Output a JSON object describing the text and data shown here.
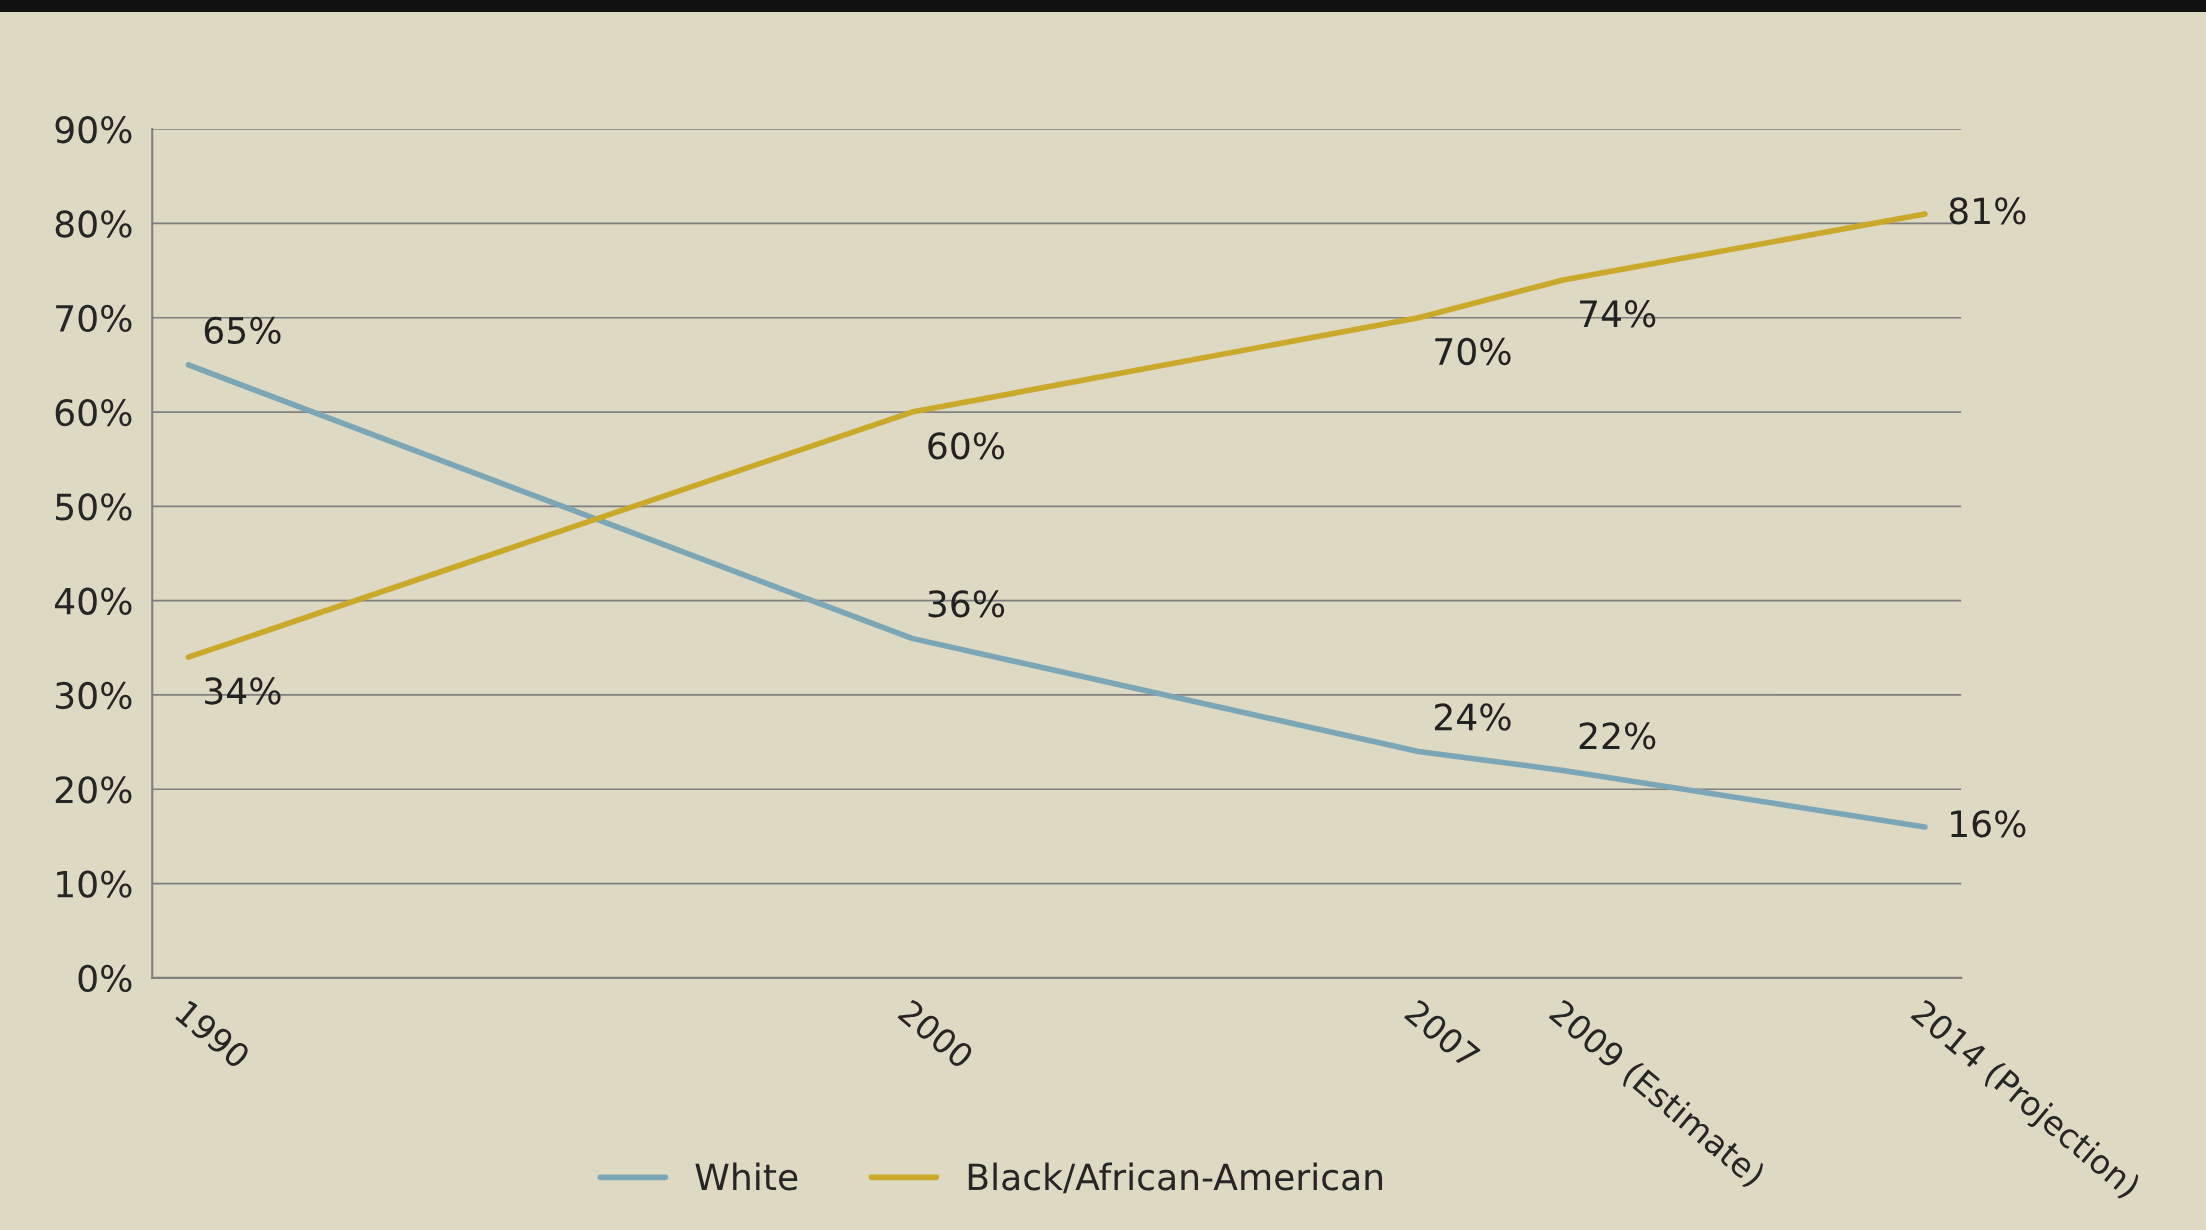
{
  "chart_data": {
    "type": "line",
    "x": [
      1990,
      2000,
      2007,
      2009,
      2014
    ],
    "series": [
      {
        "name": "White",
        "color": "#7ba6b6",
        "values": [
          65,
          36,
          24,
          22,
          16
        ],
        "value_labels": [
          "65%",
          "36%",
          "24%",
          "22%",
          "16%"
        ]
      },
      {
        "name": "Black/African-American",
        "color": "#c9a82a",
        "values": [
          34,
          60,
          70,
          74,
          81
        ],
        "value_labels": [
          "34%",
          "60%",
          "70%",
          "74%",
          "81%"
        ]
      }
    ],
    "xlim": [
      1989.5,
      2014.5
    ],
    "xticks": [
      {
        "value": 1990,
        "label": "1990"
      },
      {
        "value": 2000,
        "label": "2000"
      },
      {
        "value": 2007,
        "label": "2007"
      },
      {
        "value": 2009,
        "label": "2009 (Estimate)"
      },
      {
        "value": 2014,
        "label": "2014 (Projection)"
      }
    ],
    "ylim": [
      0,
      90
    ],
    "yticks": [
      {
        "value": 0,
        "label": "0%"
      },
      {
        "value": 10,
        "label": "10%"
      },
      {
        "value": 20,
        "label": "20%"
      },
      {
        "value": 30,
        "label": "30%"
      },
      {
        "value": 40,
        "label": "40%"
      },
      {
        "value": 50,
        "label": "50%"
      },
      {
        "value": 60,
        "label": "60%"
      },
      {
        "value": 70,
        "label": "70%"
      },
      {
        "value": 80,
        "label": "80%"
      },
      {
        "value": 90,
        "label": "90%"
      }
    ],
    "grid": "y",
    "legend": "bottom",
    "marker": "none",
    "line_style": "solid"
  }
}
